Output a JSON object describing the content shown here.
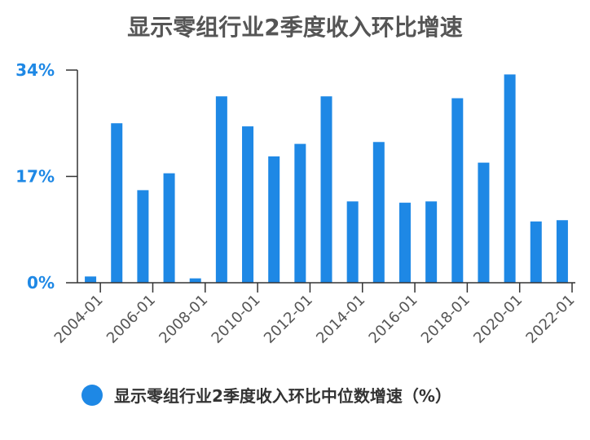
{
  "chart_data": {
    "type": "bar",
    "title": "显示零组行业2季度收入环比增速",
    "x": [
      "2004-01",
      "2005-01",
      "2006-01",
      "2007-01",
      "2008-01",
      "2009-01",
      "2010-01",
      "2011-01",
      "2012-01",
      "2013-01",
      "2014-01",
      "2015-01",
      "2016-01",
      "2017-01",
      "2018-01",
      "2019-01",
      "2020-01",
      "2021-01",
      "2022-01"
    ],
    "x_tick_labels": [
      "2004-01",
      "2006-01",
      "2008-01",
      "2010-01",
      "2012-01",
      "2014-01",
      "2016-01",
      "2018-01",
      "2020-01",
      "2022-01"
    ],
    "series": [
      {
        "name": "显示零组行业2季度收入环比中位数增速（%）",
        "color": "#1e88e5",
        "values": [
          1,
          25.5,
          14.8,
          17.5,
          0.7,
          29.8,
          25.0,
          20.2,
          22.2,
          29.8,
          13.0,
          22.5,
          12.8,
          13.0,
          29.5,
          19.2,
          33.3,
          9.8,
          10.0
        ]
      }
    ],
    "ylim": [
      0,
      34
    ],
    "y_tick_labels": [
      "0%",
      "17%",
      "34%"
    ],
    "y_tick_values": [
      0,
      17,
      34
    ],
    "axis_color": "#1e88e5",
    "grid": false,
    "legend_position": "bottom"
  }
}
